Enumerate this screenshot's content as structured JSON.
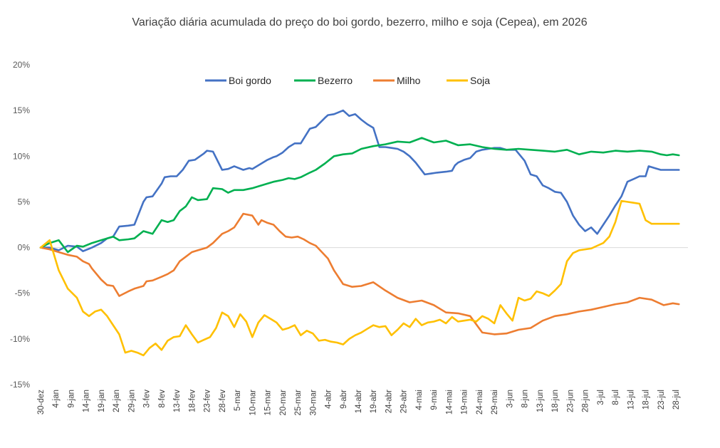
{
  "chart_data": {
    "type": "line",
    "title": "Variação diária acumulada do preço do boi gordo, bezerro, milho e soja (Cepea), em 2026",
    "xlabel": "",
    "ylabel": "",
    "ylim": [
      -15,
      20
    ],
    "yticks": [
      20,
      15,
      10,
      5,
      0,
      -5,
      -10,
      -15
    ],
    "ytick_labels": [
      "20%",
      "15%",
      "10%",
      "5%",
      "0%",
      "-5%",
      "-10%",
      "-15%"
    ],
    "x_tick_labels": [
      "30-dez",
      "4-jan",
      "9-jan",
      "14-jan",
      "19-jan",
      "24-jan",
      "29-jan",
      "3-fev",
      "8-fev",
      "13-fev",
      "18-fev",
      "23-fev",
      "28-fev",
      "5-mar",
      "10-mar",
      "15-mar",
      "20-mar",
      "25-mar",
      "30-mar",
      "4-abr",
      "9-abr",
      "14-abr",
      "19-abr",
      "24-abr",
      "29-abr",
      "4-mai",
      "9-mai",
      "14-mai",
      "19-mai",
      "24-mai",
      "29-mai",
      "3-jun",
      "8-jun",
      "13-jun",
      "18-jun",
      "23-jun",
      "28-jun",
      "3-jul",
      "8-jul",
      "13-jul",
      "18-jul",
      "23-jul",
      "28-jul"
    ],
    "x_day_start": 0,
    "x_day_end": 214,
    "x_tick_step_days": 5,
    "grid": false,
    "legend": "top",
    "series": [
      {
        "name": "Boi gordo",
        "color": "#4472C4",
        "x": [
          0,
          3,
          6,
          9,
          12,
          14,
          17,
          20,
          22,
          24,
          26,
          29,
          31,
          34,
          35,
          37,
          40,
          41,
          43,
          45,
          47,
          49,
          51,
          54,
          55,
          57,
          60,
          62,
          64,
          67,
          69,
          70,
          72,
          75,
          77,
          78,
          80,
          82,
          84,
          86,
          89,
          91,
          94,
          95,
          97,
          100,
          102,
          104,
          106,
          108,
          110,
          112,
          114,
          116,
          118,
          120,
          122,
          124,
          127,
          129,
          131,
          134,
          136,
          137,
          138,
          140,
          142,
          144,
          146,
          148,
          150,
          152,
          154,
          157,
          160,
          162,
          164,
          166,
          168,
          170,
          172,
          174,
          176,
          178,
          180,
          182,
          184,
          186,
          188,
          190,
          192,
          194,
          196,
          198,
          200,
          201,
          203,
          205,
          207,
          209,
          211,
          213,
          214
        ],
        "y": [
          0,
          0,
          -0.3,
          0.2,
          0.1,
          -0.4,
          0,
          0.5,
          1,
          1.2,
          2.3,
          2.4,
          2.5,
          5,
          5.5,
          5.6,
          7,
          7.7,
          7.8,
          7.8,
          8.5,
          9.5,
          9.6,
          10.3,
          10.6,
          10.5,
          8.5,
          8.6,
          8.9,
          8.5,
          8.7,
          8.6,
          9,
          9.6,
          9.9,
          10,
          10.4,
          11,
          11.4,
          11.4,
          13,
          13.2,
          14.2,
          14.5,
          14.6,
          15,
          14.4,
          14.6,
          14,
          13.5,
          13.1,
          11,
          11,
          10.9,
          10.8,
          10.5,
          10,
          9.3,
          8,
          8.1,
          8.2,
          8.3,
          8.4,
          9,
          9.3,
          9.6,
          9.8,
          10.5,
          10.7,
          10.8,
          10.9,
          10.9,
          10.7,
          10.7,
          9.5,
          8,
          7.8,
          6.8,
          6.5,
          6.1,
          6,
          5,
          3.5,
          2.5,
          1.8,
          2.2,
          1.5,
          2.5,
          3.5,
          4.6,
          5.6,
          7.2,
          7.5,
          7.8,
          7.8,
          8.9,
          8.7,
          8.5,
          8.5,
          8.5,
          8.5,
          8.5,
          8.5
        ],
        "y_trim_end": 211
      },
      {
        "name": "Bezerro",
        "color": "#00B050",
        "x": [
          0,
          3,
          6,
          9,
          12,
          14,
          17,
          20,
          22,
          24,
          26,
          29,
          31,
          34,
          35,
          37,
          40,
          42,
          44,
          46,
          48,
          50,
          52,
          55,
          57,
          60,
          62,
          64,
          67,
          70,
          72,
          75,
          77,
          80,
          82,
          84,
          86,
          89,
          91,
          94,
          97,
          100,
          103,
          106,
          110,
          114,
          118,
          122,
          126,
          130,
          134,
          138,
          142,
          146,
          150,
          154,
          158,
          162,
          166,
          170,
          174,
          178,
          182,
          186,
          190,
          194,
          198,
          202,
          205,
          207,
          209,
          211
        ],
        "y": [
          0,
          0.5,
          0.8,
          -0.5,
          0.2,
          0.1,
          0.5,
          0.8,
          1,
          1.2,
          0.8,
          0.9,
          1,
          1.8,
          1.7,
          1.5,
          3,
          2.8,
          3,
          4,
          4.5,
          5.5,
          5.2,
          5.3,
          6.5,
          6.4,
          6,
          6.3,
          6.3,
          6.5,
          6.7,
          7,
          7.2,
          7.4,
          7.6,
          7.5,
          7.7,
          8.2,
          8.5,
          9.2,
          10,
          10.2,
          10.3,
          10.8,
          11.1,
          11.3,
          11.6,
          11.5,
          12,
          11.5,
          11.7,
          11.2,
          11.3,
          11,
          10.8,
          10.7,
          10.8,
          10.7,
          10.6,
          10.5,
          10.7,
          10.2,
          10.5,
          10.4,
          10.6,
          10.5,
          10.6,
          10.5,
          10.2,
          10.1,
          10.2,
          10.1
        ]
      },
      {
        "name": "Milho",
        "color": "#ED7D31",
        "x": [
          0,
          3,
          6,
          9,
          12,
          14,
          16,
          17,
          20,
          22,
          24,
          26,
          29,
          31,
          34,
          35,
          37,
          40,
          42,
          44,
          46,
          48,
          50,
          52,
          55,
          57,
          60,
          62,
          64,
          67,
          70,
          72,
          73,
          75,
          77,
          79,
          81,
          83,
          85,
          87,
          89,
          91,
          93,
          95,
          97,
          100,
          103,
          106,
          110,
          114,
          118,
          122,
          126,
          130,
          134,
          138,
          142,
          146,
          150,
          154,
          158,
          162,
          166,
          170,
          174,
          178,
          182,
          186,
          190,
          194,
          198,
          202,
          206,
          209,
          211
        ],
        "y": [
          0,
          -0.2,
          -0.5,
          -0.8,
          -1,
          -1.5,
          -1.8,
          -2.3,
          -3.5,
          -4.1,
          -4.2,
          -5.3,
          -4.8,
          -4.5,
          -4.2,
          -3.7,
          -3.6,
          -3.2,
          -2.9,
          -2.5,
          -1.5,
          -1,
          -0.5,
          -0.3,
          0,
          0.5,
          1.5,
          1.8,
          2.2,
          3.7,
          3.5,
          2.5,
          3,
          2.7,
          2.5,
          1.8,
          1.2,
          1.1,
          1.2,
          0.9,
          0.5,
          0.2,
          -0.5,
          -1.2,
          -2.5,
          -4,
          -4.3,
          -4.2,
          -3.8,
          -4.7,
          -5.5,
          -6,
          -5.8,
          -6.3,
          -7.1,
          -7.2,
          -7.5,
          -9.3,
          -9.5,
          -9.4,
          -9,
          -8.8,
          -8,
          -7.5,
          -7.3,
          -7,
          -6.8,
          -6.5,
          -6.2,
          -6,
          -5.5,
          -5.7,
          -6.3,
          -6.1,
          -6.2
        ]
      },
      {
        "name": "Soja",
        "color": "#FFC000",
        "x": [
          0,
          3,
          6,
          9,
          12,
          14,
          16,
          18,
          20,
          22,
          24,
          26,
          28,
          30,
          32,
          34,
          36,
          38,
          40,
          42,
          44,
          46,
          48,
          50,
          52,
          54,
          56,
          58,
          60,
          62,
          64,
          66,
          68,
          70,
          72,
          74,
          76,
          78,
          80,
          82,
          84,
          86,
          88,
          90,
          92,
          94,
          96,
          98,
          100,
          102,
          104,
          106,
          108,
          110,
          112,
          114,
          116,
          118,
          120,
          122,
          124,
          126,
          128,
          130,
          132,
          134,
          136,
          138,
          140,
          142,
          144,
          146,
          148,
          150,
          152,
          154,
          156,
          158,
          160,
          162,
          164,
          166,
          168,
          170,
          172,
          174,
          176,
          178,
          180,
          182,
          184,
          186,
          188,
          190,
          192,
          194,
          196,
          198,
          200,
          202,
          204,
          206,
          208,
          210,
          211
        ],
        "y": [
          0,
          0.8,
          -2.5,
          -4.5,
          -5.5,
          -7,
          -7.5,
          -7,
          -6.8,
          -7.5,
          -8.5,
          -9.5,
          -11.5,
          -11.3,
          -11.5,
          -11.8,
          -11,
          -10.5,
          -11.2,
          -10.2,
          -9.8,
          -9.7,
          -8.5,
          -9.5,
          -10.4,
          -10.1,
          -9.8,
          -8.8,
          -7.1,
          -7.5,
          -8.7,
          -7.3,
          -8.1,
          -9.8,
          -8.2,
          -7.4,
          -7.8,
          -8.2,
          -9,
          -8.8,
          -8.5,
          -9.6,
          -9.1,
          -9.4,
          -10.2,
          -10.1,
          -10.3,
          -10.4,
          -10.6,
          -10,
          -9.6,
          -9.3,
          -8.9,
          -8.5,
          -8.7,
          -8.6,
          -9.6,
          -9,
          -8.3,
          -8.7,
          -7.8,
          -8.5,
          -8.2,
          -8.1,
          -7.9,
          -8.3,
          -7.6,
          -8.1,
          -8,
          -7.9,
          -8.1,
          -7.5,
          -7.8,
          -8.3,
          -6.3,
          -7.2,
          -8,
          -5.5,
          -5.8,
          -5.6,
          -4.8,
          -5,
          -5.3,
          -4.7,
          -4,
          -1.5,
          -0.6,
          -0.3,
          -0.2,
          -0.1,
          0.2,
          0.5,
          1.2,
          2.8,
          5.1,
          5,
          4.9,
          4.8,
          3,
          2.6,
          2.6,
          2.6,
          2.6,
          2.6,
          2.6
        ],
        "y_trim_end": 211
      }
    ]
  }
}
